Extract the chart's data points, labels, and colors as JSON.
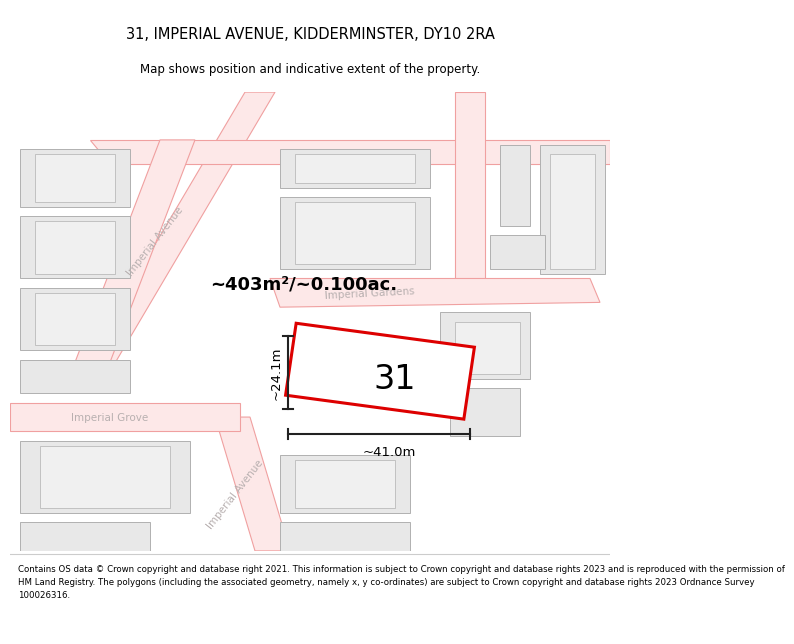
{
  "title": "31, IMPERIAL AVENUE, KIDDERMINSTER, DY10 2RA",
  "subtitle": "Map shows position and indicative extent of the property.",
  "footer_lines": [
    "Contains OS data © Crown copyright and database right 2021. This information is subject to Crown copyright and database rights 2023 and is reproduced with the permission of",
    "HM Land Registry. The polygons (including the associated geometry, namely x, y co-ordinates) are subject to Crown copyright and database rights 2023 Ordnance Survey",
    "100026316."
  ],
  "area_label": "~403m²/~0.100ac.",
  "number_label": "31",
  "width_label": "~41.0m",
  "height_label": "~24.1m",
  "map_bg": "#ffffff",
  "building_fill": "#e8e8e8",
  "building_edge": "#b0b0b0",
  "road_line_color": "#f0a0a0",
  "road_fill_color": "#fde8e8",
  "highlight_color": "#dd0000",
  "dim_color": "#222222",
  "street_label_color": "#b8b0b0",
  "title_fontsize": 10.5,
  "subtitle_fontsize": 8.5,
  "footer_fontsize": 6.2,
  "area_fontsize": 13,
  "number_fontsize": 24,
  "dim_fontsize": 9.5,
  "street_fontsize": 7.5
}
